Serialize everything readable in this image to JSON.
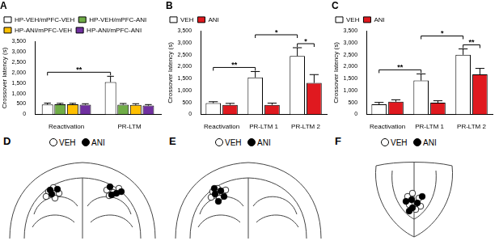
{
  "chart_data": [
    {
      "type": "bar",
      "title": "A",
      "categories": [
        "Reactivation",
        "PR-LTM"
      ],
      "series": [
        {
          "name": "HP-VEH/mPFC-VEH",
          "color": "#ffffff",
          "values": [
            470,
            1550
          ],
          "errors": [
            70,
            280
          ]
        },
        {
          "name": "HP-VEH/mPFC-ANI",
          "color": "#70ad47",
          "values": [
            480,
            460
          ],
          "errors": [
            50,
            60
          ]
        },
        {
          "name": "HP-ANI/mPFC-VEH",
          "color": "#ffc000",
          "values": [
            480,
            450
          ],
          "errors": [
            50,
            60
          ]
        },
        {
          "name": "HP-ANI/mPFC-ANI",
          "color": "#7030a0",
          "values": [
            460,
            420
          ],
          "errors": [
            50,
            50
          ]
        }
      ],
      "y_label": "Crossover latency (s)",
      "ylim": [
        0,
        3500
      ],
      "yticks": [
        0,
        500,
        1000,
        1500,
        2000,
        2500,
        3000,
        3500
      ],
      "grid": false,
      "legend": "top-left",
      "annotations": [
        {
          "text": "**",
          "from": {
            "category": "Reactivation",
            "series": "HP-VEH/mPFC-VEH"
          },
          "to": {
            "category": "PR-LTM",
            "series": "HP-VEH/mPFC-VEH"
          }
        }
      ]
    },
    {
      "type": "bar",
      "title": "B",
      "categories": [
        "Reactivation",
        "PR-LTM 1",
        "PR-LTM 2"
      ],
      "series": [
        {
          "name": "VEH",
          "color": "#ffffff",
          "values": [
            470,
            1550,
            2450
          ],
          "errors": [
            60,
            250,
            350
          ]
        },
        {
          "name": "ANI",
          "color": "#e0191f",
          "values": [
            400,
            400,
            1320
          ],
          "errors": [
            60,
            70,
            350
          ]
        }
      ],
      "y_label": "Crossover latency (s)",
      "ylim": [
        0,
        3500
      ],
      "yticks": [
        0,
        500,
        1000,
        1500,
        2000,
        2500,
        3000,
        3500
      ],
      "grid": false,
      "legend": "top-left",
      "annotations": [
        {
          "text": "*",
          "from": {
            "category": "PR-LTM 2",
            "series": "VEH"
          },
          "to": {
            "category": "PR-LTM 2",
            "series": "ANI"
          }
        },
        {
          "text": "*",
          "from": {
            "category": "PR-LTM 1",
            "series": "VEH"
          },
          "to": {
            "category": "PR-LTM 2",
            "series": "VEH"
          }
        },
        {
          "text": "**",
          "from": {
            "category": "Reactivation",
            "series": "VEH"
          },
          "to": {
            "category": "PR-LTM 1",
            "series": "VEH"
          }
        }
      ]
    },
    {
      "type": "bar",
      "title": "C",
      "categories": [
        "Reactivation",
        "PR-LTM 1",
        "PR-LTM 2"
      ],
      "series": [
        {
          "name": "VEH",
          "color": "#ffffff",
          "values": [
            420,
            1420,
            2500
          ],
          "errors": [
            80,
            280,
            250
          ]
        },
        {
          "name": "ANI",
          "color": "#e0191f",
          "values": [
            530,
            490,
            1680
          ],
          "errors": [
            80,
            80,
            250
          ]
        }
      ],
      "y_label": "Crossover latency (s)",
      "ylim": [
        0,
        3500
      ],
      "yticks": [
        0,
        500,
        1000,
        1500,
        2000,
        2500,
        3000,
        3500
      ],
      "grid": false,
      "legend": "top-left",
      "annotations": [
        {
          "text": "**",
          "from": {
            "category": "PR-LTM 2",
            "series": "VEH"
          },
          "to": {
            "category": "PR-LTM 2",
            "series": "ANI"
          }
        },
        {
          "text": "*",
          "from": {
            "category": "PR-LTM 1",
            "series": "VEH"
          },
          "to": {
            "category": "PR-LTM 2",
            "series": "VEH"
          }
        },
        {
          "text": "**",
          "from": {
            "category": "Reactivation",
            "series": "VEH"
          },
          "to": {
            "category": "PR-LTM 1",
            "series": "VEH"
          }
        }
      ]
    }
  ],
  "diagrams": [
    {
      "title": "D",
      "legend": [
        {
          "name": "VEH",
          "color": "#ffffff"
        },
        {
          "name": "ANI",
          "color": "#000000"
        }
      ]
    },
    {
      "title": "E",
      "legend": [
        {
          "name": "VEH",
          "color": "#ffffff"
        },
        {
          "name": "ANI",
          "color": "#000000"
        }
      ]
    },
    {
      "title": "F",
      "legend": [
        {
          "name": "VEH",
          "color": "#ffffff"
        },
        {
          "name": "ANI",
          "color": "#000000"
        }
      ]
    }
  ]
}
